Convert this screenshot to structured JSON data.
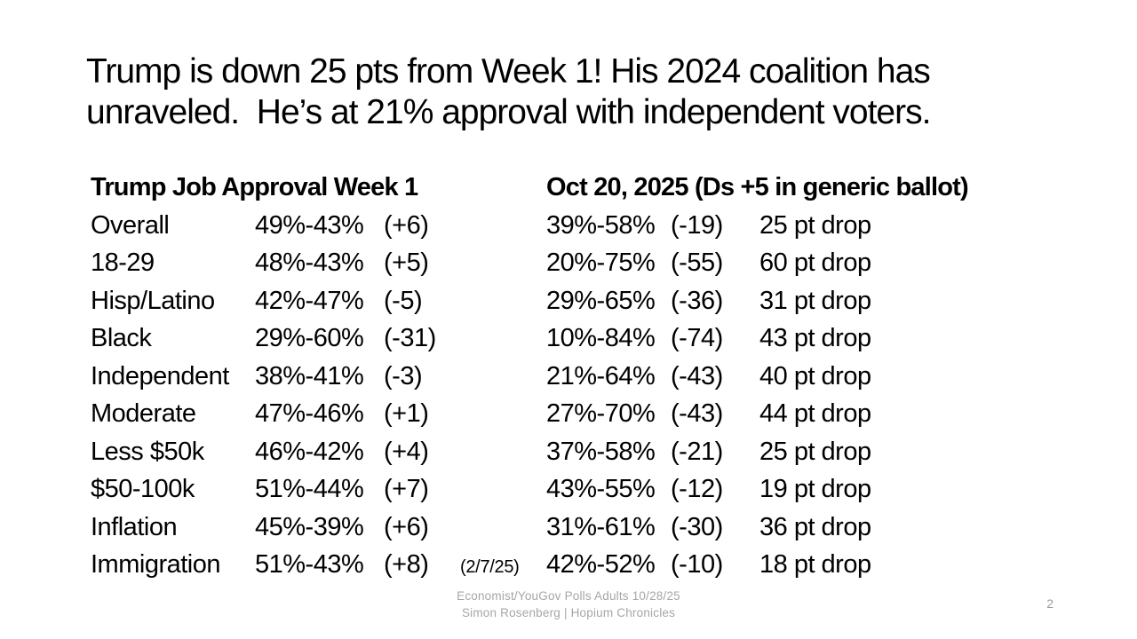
{
  "slide": {
    "title": "Trump is down 25 pts from Week 1! His 2024 coalition has unraveled.  He’s at 21% approval with independent voters.",
    "table": {
      "left_header": "Trump Job Approval Week 1",
      "right_header": "Oct 20, 2025 (Ds +5 in generic ballot)",
      "rows": [
        {
          "label": "Overall",
          "week1": "49%-43%",
          "week1_margin": "(+6)",
          "note": "",
          "oct20": "39%-58%",
          "oct20_margin": "(-19)",
          "drop": "25 pt drop"
        },
        {
          "label": "18-29",
          "week1": "48%-43%",
          "week1_margin": "(+5)",
          "note": "",
          "oct20": "20%-75%",
          "oct20_margin": "(-55)",
          "drop": "60 pt drop"
        },
        {
          "label": "Hisp/Latino",
          "week1": "42%-47%",
          "week1_margin": "(-5)",
          "note": "",
          "oct20": "29%-65%",
          "oct20_margin": "(-36)",
          "drop": "31 pt drop"
        },
        {
          "label": "Black",
          "week1": "29%-60%",
          "week1_margin": "(-31)",
          "note": "",
          "oct20": "10%-84%",
          "oct20_margin": "(-74)",
          "drop": "43 pt drop"
        },
        {
          "label": "Independent",
          "week1": "38%-41%",
          "week1_margin": "(-3)",
          "note": "",
          "oct20": "21%-64%",
          "oct20_margin": "(-43)",
          "drop": "40 pt drop"
        },
        {
          "label": "Moderate",
          "week1": "47%-46%",
          "week1_margin": "(+1)",
          "note": "",
          "oct20": "27%-70%",
          "oct20_margin": "(-43)",
          "drop": "44 pt drop"
        },
        {
          "label": "Less $50k",
          "week1": "46%-42%",
          "week1_margin": "(+4)",
          "note": "",
          "oct20": "37%-58%",
          "oct20_margin": "(-21)",
          "drop": "25 pt drop"
        },
        {
          "label": "$50-100k",
          "week1": "51%-44%",
          "week1_margin": "(+7)",
          "note": "",
          "oct20": "43%-55%",
          "oct20_margin": "(-12)",
          "drop": "19 pt drop"
        },
        {
          "label": "Inflation",
          "week1": "45%-39%",
          "week1_margin": "(+6)",
          "note": "",
          "oct20": "31%-61%",
          "oct20_margin": "(-30)",
          "drop": "36 pt drop"
        },
        {
          "label": "Immigration",
          "week1": "51%-43%",
          "week1_margin": "(+8)",
          "note": "(2/7/25)",
          "oct20": "42%-52%",
          "oct20_margin": "(-10)",
          "drop": "18 pt drop"
        }
      ]
    },
    "footer": {
      "line1": "Economist/YouGov Polls Adults 10/28/25",
      "line2": "Simon Rosenberg | Hopium Chronicles"
    },
    "page_number": "2",
    "colors": {
      "text": "#000000",
      "footer_gray": "#a6a6a6"
    }
  }
}
